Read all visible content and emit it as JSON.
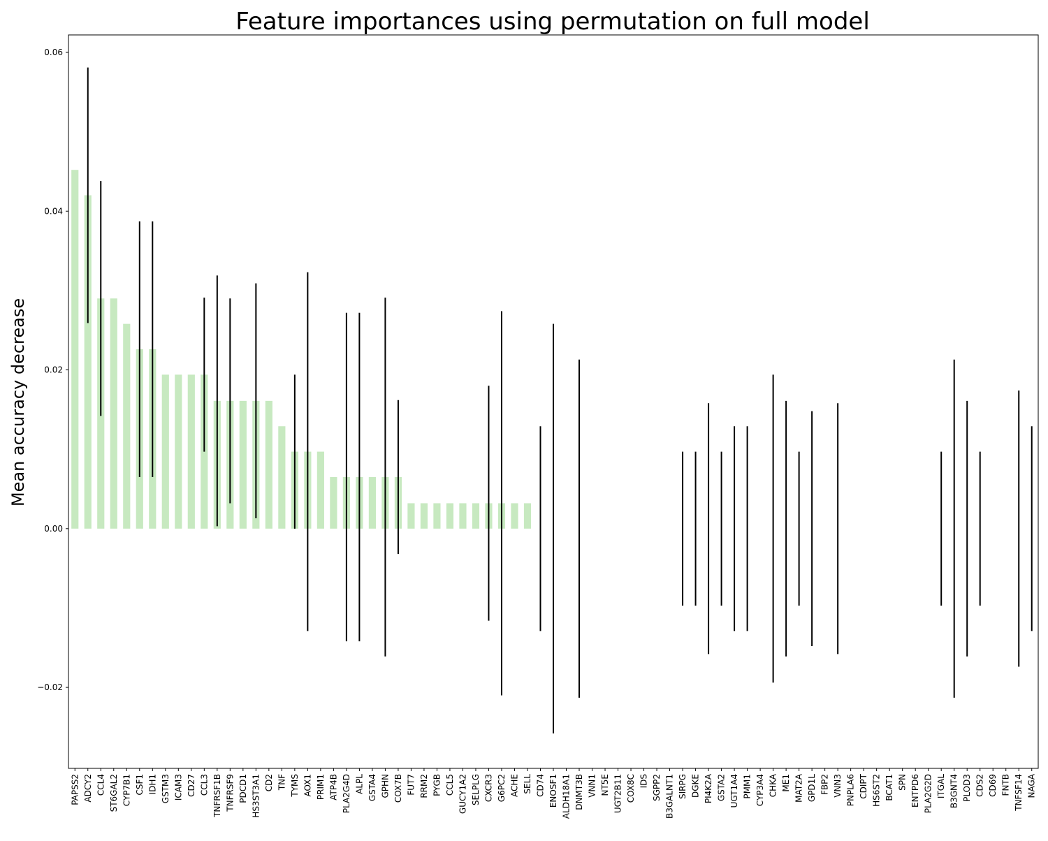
{
  "chart_data": {
    "type": "bar",
    "title": "Feature importances using permutation on full model",
    "xlabel": "",
    "ylabel": "Mean accuracy decrease",
    "ylim": [
      -0.0302,
      0.0622
    ],
    "yticks": [
      -0.02,
      0.0,
      0.02,
      0.04,
      0.06
    ],
    "ytick_labels": [
      "−0.02",
      "0.00",
      "0.02",
      "0.04",
      "0.06"
    ],
    "grid": false,
    "legend": "none",
    "colors": {
      "bar": "#c7e9c0",
      "error": "#000000",
      "axis": "#000000"
    },
    "categories": [
      "PAPSS2",
      "ADCY2",
      "CCL4",
      "ST6GAL2",
      "CYP7B1",
      "CSF1",
      "IDH1",
      "GSTM3",
      "ICAM3",
      "CD27",
      "CCL3",
      "TNFRSF1B",
      "TNFRSF9",
      "PDCD1",
      "HS3ST3A1",
      "CD2",
      "TNF",
      "TYMS",
      "AOX1",
      "PRIM1",
      "ATP4B",
      "PLA2G4D",
      "ALPL",
      "GSTA4",
      "GPHN",
      "COX7B",
      "FUT7",
      "RRM2",
      "PYGB",
      "CCL5",
      "GUCY1A2",
      "SELPLG",
      "CXCR3",
      "G6PC2",
      "ACHE",
      "SELL",
      "CD74",
      "ENOSF1",
      "ALDH18A1",
      "DNMT3B",
      "VNN1",
      "NT5E",
      "UGT2B11",
      "COX8C",
      "IDS",
      "SGPP2",
      "B3GALNT1",
      "SIRPG",
      "DGKE",
      "PI4K2A",
      "GSTA2",
      "UGT1A4",
      "PMM1",
      "CYP3A4",
      "CHKA",
      "ME1",
      "MAT2A",
      "GPD1L",
      "FBP2",
      "VNN3",
      "PNPLA6",
      "CDIPT",
      "HS6ST2",
      "BCAT1",
      "SPN",
      "ENTPD6",
      "PLA2G2D",
      "ITGAL",
      "B3GNT4",
      "PLOD3",
      "CDS2",
      "CD69",
      "FNTB",
      "TNFSF14",
      "NAGA"
    ],
    "values": [
      0.0452,
      0.042,
      0.029,
      0.029,
      0.0258,
      0.0226,
      0.0226,
      0.0194,
      0.0194,
      0.0194,
      0.0194,
      0.0161,
      0.0161,
      0.0161,
      0.0161,
      0.0161,
      0.0129,
      0.0097,
      0.0097,
      0.0097,
      0.0065,
      0.0065,
      0.0065,
      0.0065,
      0.0065,
      0.0065,
      0.0032,
      0.0032,
      0.0032,
      0.0032,
      0.0032,
      0.0032,
      0.0032,
      0.0032,
      0.0032,
      0.0032,
      0,
      0,
      0,
      0,
      0,
      0,
      0,
      0,
      0,
      0,
      0,
      0,
      0,
      0,
      0,
      0,
      0,
      0,
      0,
      0,
      0,
      0,
      0,
      0,
      0,
      0,
      0,
      0,
      0,
      0,
      0,
      0,
      0,
      0,
      0,
      0,
      0,
      0,
      0
    ],
    "errors": [
      0,
      0.0161,
      0.0148,
      0,
      0,
      0.0161,
      0.0161,
      0,
      0,
      0,
      0.0097,
      0.0158,
      0.0129,
      0,
      0.0148,
      0,
      0,
      0.0097,
      0.0226,
      0,
      0,
      0.0207,
      0.0207,
      0,
      0.0226,
      0.0097,
      0,
      0,
      0,
      0,
      0,
      0,
      0.0148,
      0.0242,
      0,
      0,
      0.0129,
      0.0258,
      0,
      0.0213,
      0,
      0,
      0,
      0,
      0,
      0,
      0,
      0.0097,
      0.0097,
      0.0158,
      0.0097,
      0.0129,
      0.0129,
      0,
      0.0194,
      0.0161,
      0.0097,
      0.0148,
      0,
      0.0158,
      0,
      0,
      0,
      0,
      0,
      0,
      0,
      0.0097,
      0.0213,
      0.0161,
      0.0097,
      0,
      0,
      0.0174,
      0.0129
    ]
  }
}
